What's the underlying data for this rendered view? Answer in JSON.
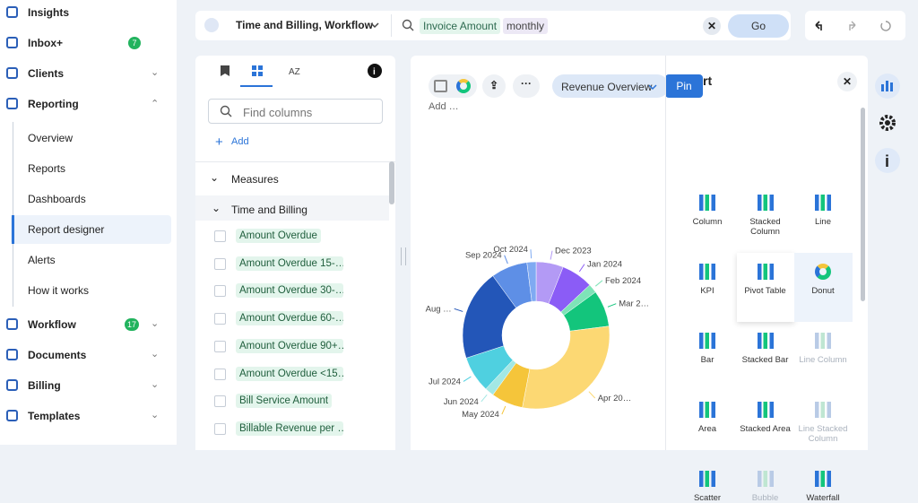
{
  "sidebar": {
    "items": [
      {
        "label": "Insights"
      },
      {
        "label": "Inbox+",
        "badge": 7
      },
      {
        "label": "Clients"
      },
      {
        "label": "Reporting"
      },
      {
        "label": "Overview"
      },
      {
        "label": "Reports"
      },
      {
        "label": "Dashboards"
      },
      {
        "label": "Report designer",
        "selected": true
      },
      {
        "label": "Alerts"
      },
      {
        "label": "How it works"
      },
      {
        "label": "Workflow",
        "badge": 17
      },
      {
        "label": "Documents"
      },
      {
        "label": "Billing"
      },
      {
        "label": "Templates"
      }
    ]
  },
  "query_bar": {
    "source": "Time and Billing, Workflow",
    "chips": [
      "Invoice Amount",
      "monthly"
    ],
    "go": "Go"
  },
  "columns_panel": {
    "search_placeholder": "Find columns",
    "add": "Add",
    "sections": [
      "Measures",
      "Time and Billing"
    ],
    "items": [
      "Amount Overdue",
      "Amount Overdue 15-…",
      "Amount Overdue 30-…",
      "Amount Overdue 60-…",
      "Amount Overdue 90+…",
      "Amount Overdue <15…",
      "Bill Service Amount",
      "Billable Revenue per …"
    ]
  },
  "report": {
    "name": "Revenue Overview",
    "pin": "Pin",
    "add": "Add …",
    "chart": {
      "type": "donut",
      "categories": [
        "Dec 2023",
        "Jan 2024",
        "Feb 2024",
        "Mar 2…",
        "Apr 20…",
        "May 2024",
        "Jun 2024",
        "Jul 2024",
        "Aug …",
        "Sep 2024",
        "Oct 2024"
      ],
      "values": [
        6,
        7,
        2,
        8,
        30,
        7,
        2,
        8,
        20,
        8,
        2
      ],
      "colors": [
        "#b39af5",
        "#8b5cf6",
        "#7ee3b8",
        "#13c57c",
        "#fcd873",
        "#f5c53a",
        "#a3e8e4",
        "#4fd0e0",
        "#2356b8",
        "#5e8fe6",
        "#7faaf2"
      ]
    }
  },
  "chart_types": {
    "title": "rt",
    "items": [
      {
        "label": "Column",
        "enabled": true
      },
      {
        "label": "Stacked Column",
        "enabled": true
      },
      {
        "label": "Line",
        "enabled": true
      },
      {
        "label": "KPI",
        "enabled": true
      },
      {
        "label": "Pivot Table",
        "enabled": true
      },
      {
        "label": "Donut",
        "enabled": true,
        "selected": true
      },
      {
        "label": "Bar",
        "enabled": true
      },
      {
        "label": "Stacked Bar",
        "enabled": true
      },
      {
        "label": "Line Column",
        "enabled": false
      },
      {
        "label": "Area",
        "enabled": true
      },
      {
        "label": "Stacked Area",
        "enabled": true
      },
      {
        "label": "Line Stacked Column",
        "enabled": false
      },
      {
        "label": "Scatter",
        "enabled": true
      },
      {
        "label": "Bubble",
        "enabled": false
      },
      {
        "label": "Waterfall",
        "enabled": true
      }
    ]
  }
}
